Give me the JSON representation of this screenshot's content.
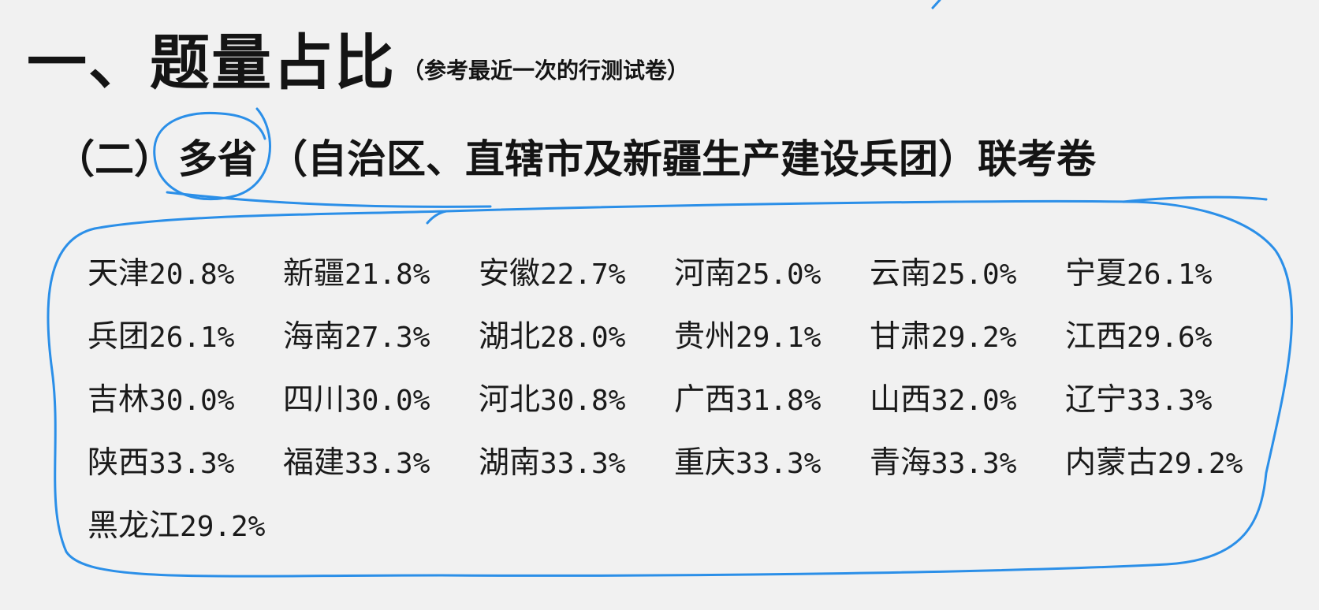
{
  "heading": {
    "main": "一、题量占比",
    "note": "（参考最近一次的行测试卷）"
  },
  "subheading": {
    "prefix": "（二）",
    "circled": "多省",
    "middle": "（自治区、直辖市及新疆生产建设兵团）",
    "suffix": "联考卷"
  },
  "ratios": {
    "rows": [
      [
        {
          "region": "天津",
          "value": "20.8%"
        },
        {
          "region": "新疆",
          "value": "21.8%"
        },
        {
          "region": "安徽",
          "value": "22.7%"
        },
        {
          "region": "河南",
          "value": "25.0%"
        },
        {
          "region": "云南",
          "value": "25.0%"
        },
        {
          "region": "宁夏",
          "value": "26.1%"
        }
      ],
      [
        {
          "region": "兵团",
          "value": "26.1%"
        },
        {
          "region": "海南",
          "value": "27.3%"
        },
        {
          "region": "湖北",
          "value": "28.0%"
        },
        {
          "region": "贵州",
          "value": "29.1%"
        },
        {
          "region": "甘肃",
          "value": "29.2%"
        },
        {
          "region": "江西",
          "value": "29.6%"
        }
      ],
      [
        {
          "region": "吉林",
          "value": "30.0%"
        },
        {
          "region": "四川",
          "value": "30.0%"
        },
        {
          "region": "河北",
          "value": "30.8%"
        },
        {
          "region": "广西",
          "value": "31.8%"
        },
        {
          "region": "山西",
          "value": "32.0%"
        },
        {
          "region": "辽宁",
          "value": "33.3%"
        }
      ],
      [
        {
          "region": "陕西",
          "value": "33.3%"
        },
        {
          "region": "福建",
          "value": "33.3%"
        },
        {
          "region": "湖南",
          "value": "33.3%"
        },
        {
          "region": "重庆",
          "value": "33.3%"
        },
        {
          "region": "青海",
          "value": "33.3%"
        },
        {
          "region": "内蒙古",
          "value": "29.2%"
        }
      ],
      [
        {
          "region": "黑龙江",
          "value": "29.2%"
        }
      ]
    ]
  },
  "colors": {
    "background": "#f1f1f1",
    "text": "#141414",
    "annotation_pen": "#2b8fe8"
  }
}
